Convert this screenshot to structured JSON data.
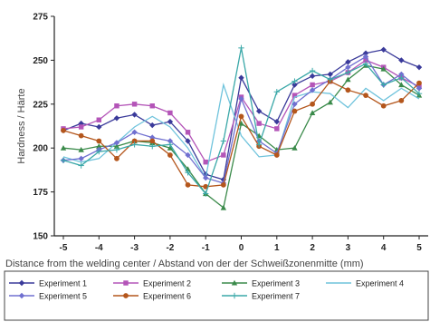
{
  "chart_data": {
    "type": "line",
    "title": "",
    "xlabel": "Distance from the welding center / Abstand von der der Schweißzonenmitte (mm)",
    "ylabel": "Hardness / Härte",
    "xlim": [
      -5,
      5
    ],
    "ylim": [
      150,
      275
    ],
    "xticks": [
      "-5",
      "-4",
      "-3",
      "-2",
      "-1",
      "0",
      "1",
      "2",
      "3",
      "4",
      "5"
    ],
    "yticks": [
      "150",
      "175",
      "200",
      "225",
      "250",
      "275"
    ],
    "grid": false,
    "legend_position": "bottom",
    "x": [
      -5,
      -4.5,
      -4,
      -3.5,
      -3,
      -2.5,
      -2,
      -1.5,
      -1,
      -0.5,
      0,
      0.5,
      1,
      1.5,
      2,
      2.5,
      3,
      3.5,
      4,
      4.5,
      5
    ],
    "series": [
      {
        "name": "Experiment 1",
        "color": "#3a3a9a",
        "marker": "diamond",
        "values": [
          210,
          214,
          212,
          217,
          219,
          213,
          215,
          204,
          185,
          182,
          240,
          221,
          215,
          236,
          241,
          242,
          249,
          254,
          256,
          250,
          246
        ]
      },
      {
        "name": "Experiment 2",
        "color": "#b455b8",
        "marker": "square",
        "values": [
          211,
          212,
          216,
          224,
          225,
          224,
          220,
          209,
          192,
          196,
          229,
          214,
          211,
          230,
          236,
          238,
          243,
          250,
          246,
          240,
          235
        ]
      },
      {
        "name": "Experiment 3",
        "color": "#3a8a4a",
        "marker": "triangle",
        "values": [
          200,
          199,
          201,
          201,
          204,
          203,
          200,
          188,
          174,
          166,
          214,
          207,
          199,
          200,
          220,
          226,
          239,
          247,
          245,
          236,
          230
        ]
      },
      {
        "name": "Experiment 4",
        "color": "#6fc3dc",
        "marker": "none",
        "values": [
          195,
          192,
          194,
          203,
          212,
          218,
          212,
          200,
          183,
          236,
          207,
          195,
          196,
          229,
          232,
          231,
          223,
          234,
          227,
          234,
          228
        ]
      },
      {
        "name": "Experiment 5",
        "color": "#7070d0",
        "marker": "diamond",
        "values": [
          193,
          194,
          199,
          203,
          209,
          206,
          204,
          196,
          183,
          180,
          228,
          204,
          197,
          225,
          233,
          239,
          246,
          252,
          236,
          242,
          234
        ]
      },
      {
        "name": "Experiment 6",
        "color": "#b4561c",
        "marker": "circle",
        "values": [
          210,
          207,
          204,
          194,
          204,
          204,
          196,
          179,
          178,
          179,
          218,
          201,
          196,
          221,
          225,
          238,
          233,
          230,
          224,
          227,
          237
        ]
      },
      {
        "name": "Experiment 7",
        "color": "#3aa8a8",
        "marker": "cross",
        "values": [
          193,
          190,
          198,
          199,
          202,
          201,
          202,
          186,
          174,
          204,
          257,
          202,
          232,
          238,
          244,
          239,
          243,
          248,
          236,
          240,
          231
        ]
      }
    ]
  }
}
